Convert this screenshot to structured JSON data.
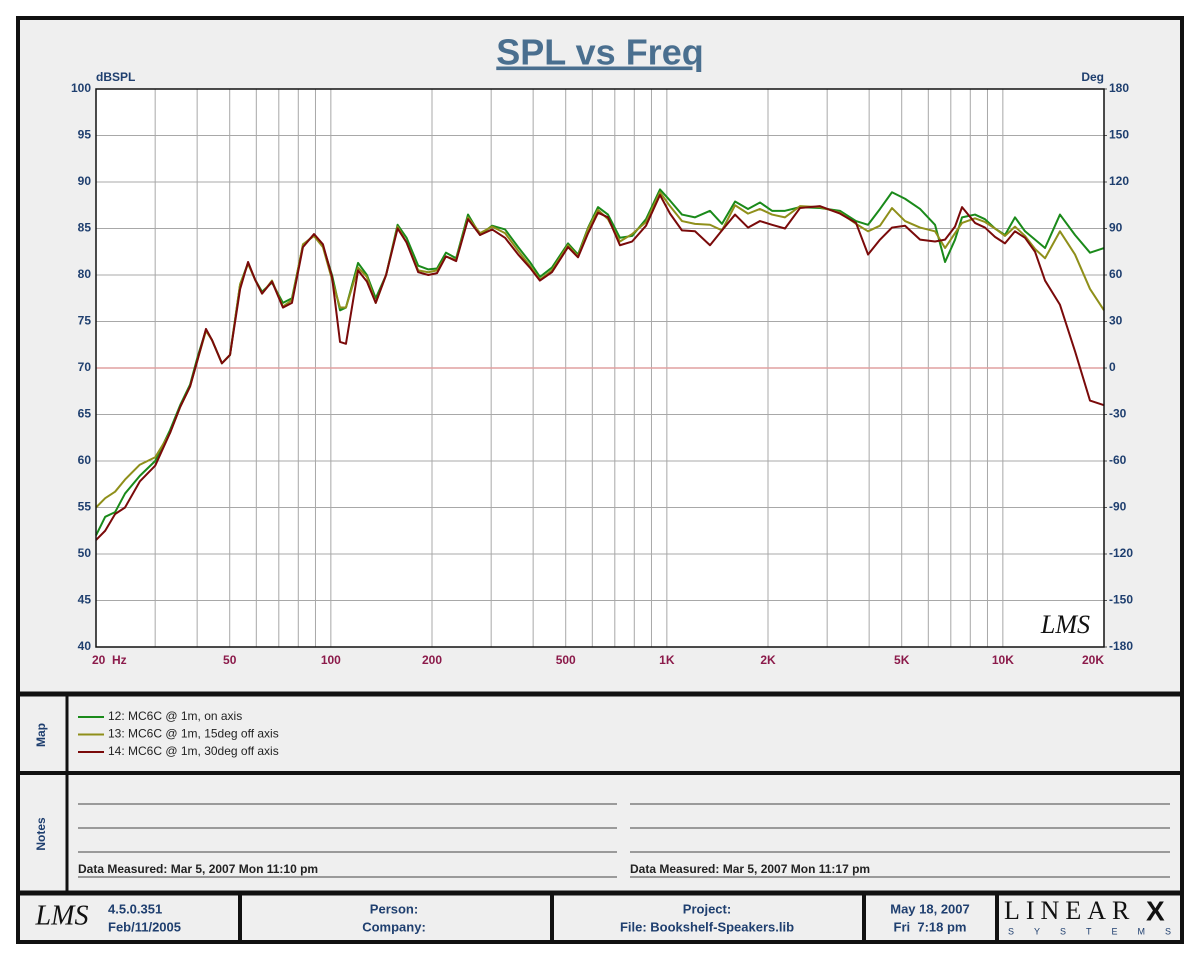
{
  "chart_data": {
    "type": "line",
    "title": "SPL vs Freq",
    "ylabel": "dBSPL",
    "y2label": "Deg",
    "xscale": "log",
    "xlim": [
      20,
      20000
    ],
    "ylim": [
      40,
      100
    ],
    "y2lim": [
      -180,
      180
    ],
    "yticks": [
      40,
      45,
      50,
      55,
      60,
      65,
      70,
      75,
      80,
      85,
      90,
      95,
      100
    ],
    "y2ticks": [
      -180,
      -150,
      -120,
      -90,
      -60,
      -30,
      0,
      30,
      60,
      90,
      120,
      150,
      180
    ],
    "xticks": [
      {
        "value": 20,
        "label": "20  Hz"
      },
      50,
      100,
      200,
      500,
      {
        "value": 1000,
        "label": "1K"
      },
      {
        "value": 2000,
        "label": "2K"
      },
      {
        "value": 5000,
        "label": "5K"
      },
      {
        "value": 10000,
        "label": "10K"
      },
      {
        "value": 20000,
        "label": "20K"
      }
    ],
    "xgrid": [
      20,
      30,
      40,
      50,
      60,
      70,
      80,
      90,
      100,
      200,
      300,
      400,
      500,
      600,
      700,
      800,
      900,
      1000,
      2000,
      3000,
      4000,
      5000,
      6000,
      7000,
      8000,
      9000,
      10000,
      20000
    ],
    "grid": true,
    "reference_line": {
      "value": 70,
      "color": "#e0a0a0"
    },
    "watermark": "LMS",
    "x": [
      20,
      21.3,
      22.8,
      24.4,
      27,
      30,
      33.2,
      35.6,
      38.1,
      40.2,
      42.5,
      44.3,
      47.4,
      50.1,
      53.7,
      56.7,
      59.5,
      62.4,
      66.8,
      72,
      76.6,
      82.6,
      89.1,
      94.7,
      100.8,
      106.5,
      110.9,
      120.5,
      128,
      136,
      146,
      158,
      168,
      182,
      195,
      207,
      220,
      236,
      256,
      278,
      302,
      330,
      361,
      391,
      419,
      455,
      508,
      544,
      583,
      624,
      668,
      725,
      788,
      867,
      954,
      1022,
      1109,
      1213,
      1344,
      1459,
      1596,
      1744,
      1893,
      2056,
      2247,
      2490,
      2857,
      3276,
      3656,
      3970,
      4309,
      4678,
      5115,
      5670,
      6282,
      6729,
      7205,
      7560,
      8262,
      8846,
      9474,
      10147,
      10868,
      11641,
      12468,
      13352,
      14791,
      16399,
      18170,
      20000
    ],
    "series": [
      {
        "name": "12: MC6C @ 1m, on axis",
        "color": "#1a8a1a",
        "values": [
          52,
          54,
          54.5,
          56.5,
          58.4,
          60,
          63.3,
          66,
          68.2,
          71.3,
          74.1,
          73,
          70.5,
          71.4,
          79,
          81.3,
          79.5,
          78.2,
          79.2,
          77,
          77.5,
          83.2,
          84.3,
          83.1,
          80,
          76.2,
          76.5,
          81.3,
          80,
          77.5,
          80,
          85.4,
          84,
          81,
          80.6,
          80.7,
          82.4,
          81.8,
          86.5,
          84.3,
          85.3,
          84.9,
          83,
          81.4,
          79.8,
          80.8,
          83.4,
          82.2,
          85.1,
          87.3,
          86.5,
          84,
          84.2,
          86,
          89.2,
          88,
          86.5,
          86.2,
          86.9,
          85.5,
          87.9,
          87.1,
          87.8,
          86.9,
          86.9,
          87.3,
          87.2,
          86.9,
          85.8,
          85.4,
          87.1,
          88.9,
          88.2,
          87.1,
          85.4,
          81.4,
          83.8,
          86.2,
          86.5,
          86,
          85,
          84.3,
          86.2,
          84.7,
          83.8,
          82.9,
          86.5,
          84.3,
          82.4,
          82.9
        ]
      },
      {
        "name": "13: MC6C @ 1m, 15deg off axis",
        "color": "#8f8f1a",
        "values": [
          55,
          56,
          56.7,
          58,
          59.6,
          60.4,
          63,
          65.8,
          68,
          71,
          74,
          73,
          70.5,
          71.4,
          79,
          81.2,
          79.5,
          78,
          79.4,
          76.6,
          77.3,
          83.3,
          84.2,
          83,
          79.5,
          76.5,
          76.5,
          80.8,
          79.8,
          77,
          80,
          85.2,
          83.5,
          80.5,
          80.3,
          80.5,
          82,
          81.6,
          86.2,
          84.5,
          85.2,
          84.5,
          82.6,
          81,
          79.5,
          80.5,
          83.2,
          82,
          85,
          87,
          86,
          83.6,
          84.4,
          85.7,
          88.9,
          87.4,
          85.8,
          85.5,
          85.4,
          84.8,
          87.5,
          86.6,
          87.1,
          86.5,
          86.2,
          87.4,
          87.3,
          86.7,
          85.5,
          84.7,
          85.3,
          87.2,
          85.8,
          85.1,
          84.7,
          82.9,
          84.5,
          85.6,
          86.1,
          85.7,
          85,
          84.2,
          85.2,
          84.2,
          82.8,
          81.8,
          84.7,
          82.2,
          78.5,
          76.2
        ]
      },
      {
        "name": "14: MC6C @ 1m, 30deg off axis",
        "color": "#7a0a0a",
        "values": [
          51.5,
          52.5,
          54.3,
          55,
          57.8,
          59.5,
          63,
          65.8,
          68,
          71,
          74.2,
          73,
          70.5,
          71.4,
          78.5,
          81.4,
          79.5,
          78,
          79.3,
          76.5,
          77,
          83,
          84.4,
          83.3,
          79.8,
          72.8,
          72.6,
          80.5,
          79.3,
          77,
          80,
          85,
          83.5,
          80.3,
          80,
          80.2,
          82,
          81.5,
          86,
          84.3,
          84.9,
          84,
          82.2,
          80.8,
          79.4,
          80.3,
          83,
          81.9,
          84.5,
          86.7,
          86.2,
          83.2,
          83.6,
          85.3,
          88.6,
          86.6,
          84.8,
          84.7,
          83.2,
          84.8,
          86.5,
          85.1,
          85.8,
          85.4,
          85,
          87.2,
          87.4,
          86.6,
          85.6,
          82.2,
          83.8,
          85.1,
          85.3,
          83.8,
          83.6,
          83.8,
          85.2,
          87.3,
          85.6,
          85.1,
          84.1,
          83.4,
          84.7,
          84,
          82.5,
          79.4,
          76.8,
          71.8,
          66.5,
          66
        ]
      }
    ]
  },
  "panels": {
    "map_label": "Map",
    "notes_label": "Notes",
    "notes": [
      "Data Measured: Mar 5, 2007 Mon 11:10 pm",
      "Data Measured: Mar 5, 2007 Mon 11:17 pm"
    ]
  },
  "footer": {
    "logo": "LMS",
    "version": "4.5.0.351",
    "build_date": "Feb/11/2005",
    "person": "Person:",
    "company": "Company:",
    "project": "Project:",
    "file": "File: Bookshelf-Speakers.lib",
    "date": "May 18, 2007",
    "time": "Fri  7:18 pm",
    "brand": "LINEAR",
    "brand_x": "X",
    "brand_sub": "SYSTEMS"
  }
}
